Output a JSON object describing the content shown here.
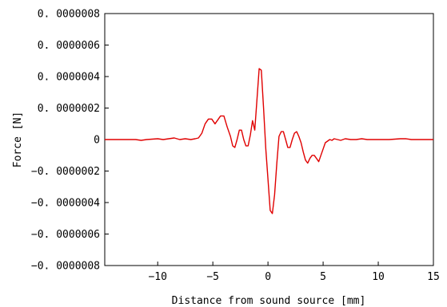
{
  "chart_data": {
    "type": "line",
    "title": "",
    "xlabel": "Distance from sound source [mm]",
    "ylabel": "Force [N]",
    "xlim": [
      -14.8,
      15
    ],
    "ylim": [
      -8e-07,
      8e-07
    ],
    "grid": false,
    "legend": "none",
    "line_color": "#e00000",
    "x_ticks": [
      -10,
      -5,
      0,
      5,
      10,
      15
    ],
    "x_tick_labels": [
      "−10",
      "−5",
      "0",
      "5",
      "10",
      "15"
    ],
    "y_ticks": [
      8e-07,
      6e-07,
      4e-07,
      2e-07,
      0,
      -2e-07,
      -4e-07,
      -6e-07,
      -8e-07
    ],
    "y_tick_labels": [
      "0. 0000008",
      "0. 0000006",
      "0. 0000004",
      "0. 0000002",
      "0",
      "−0. 0000002",
      "−0. 0000004",
      "−0. 0000006",
      "−0. 0000008"
    ],
    "series": [
      {
        "x": [
          -14.8,
          -12.0,
          -11.5,
          -11.0,
          -10.0,
          -9.5,
          -9.0,
          -8.5,
          -8.0,
          -7.5,
          -7.0,
          -6.6,
          -6.3,
          -6.0,
          -5.7,
          -5.4,
          -5.1,
          -4.8,
          -4.5,
          -4.3,
          -4.0,
          -3.7,
          -3.4,
          -3.2,
          -3.0,
          -2.8,
          -2.6,
          -2.4,
          -2.2,
          -2.0,
          -1.8,
          -1.6,
          -1.4,
          -1.2,
          -1.0,
          -0.8,
          -0.6,
          -0.4,
          -0.2,
          0.0,
          0.2,
          0.4,
          0.6,
          0.8,
          1.0,
          1.2,
          1.4,
          1.6,
          1.8,
          2.0,
          2.2,
          2.4,
          2.6,
          2.8,
          3.0,
          3.2,
          3.4,
          3.6,
          3.8,
          4.0,
          4.2,
          4.4,
          4.6,
          4.8,
          5.0,
          5.2,
          5.4,
          5.6,
          5.8,
          6.0,
          6.3,
          6.6,
          7.0,
          7.5,
          8.0,
          8.5,
          9.0,
          10.0,
          11.0,
          12.0,
          12.5,
          13.0,
          14.0,
          15.0
        ],
        "y": [
          0,
          0,
          -5e-09,
          0,
          5e-09,
          0,
          5e-09,
          1e-08,
          0,
          5e-09,
          0,
          5e-09,
          1e-08,
          4e-08,
          1e-07,
          1.3e-07,
          1.3e-07,
          1e-07,
          1.3e-07,
          1.5e-07,
          1.5e-07,
          8e-08,
          2e-08,
          -4e-08,
          -5e-08,
          0,
          6e-08,
          6e-08,
          0,
          -4e-08,
          -4e-08,
          3e-08,
          1.2e-07,
          6e-08,
          2.5e-07,
          4.5e-07,
          4.4e-07,
          2e-07,
          -6e-08,
          -2.5e-07,
          -4.5e-07,
          -4.7e-07,
          -3.5e-07,
          -1.5e-07,
          2e-08,
          5e-08,
          5e-08,
          0,
          -5e-08,
          -5e-08,
          0,
          4e-08,
          5e-08,
          2e-08,
          -2e-08,
          -8e-08,
          -1.3e-07,
          -1.5e-07,
          -1.2e-07,
          -1e-07,
          -1e-07,
          -1.2e-07,
          -1.4e-07,
          -1e-07,
          -6e-08,
          -2e-08,
          -1e-08,
          0,
          -5e-09,
          5e-09,
          0,
          -5e-09,
          5e-09,
          0,
          0,
          5e-09,
          0,
          0,
          0,
          5e-09,
          5e-09,
          0,
          0,
          0
        ]
      }
    ]
  }
}
